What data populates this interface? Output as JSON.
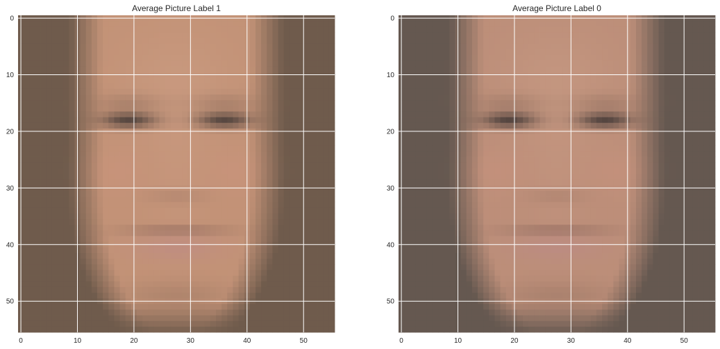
{
  "chart_data": [
    {
      "type": "heatmap",
      "title": "Average Picture Label 1",
      "x_ticks": [
        "0",
        "10",
        "20",
        "30",
        "40",
        "50"
      ],
      "y_ticks": [
        "0",
        "10",
        "20",
        "30",
        "40",
        "50"
      ],
      "xlim": [
        -0.5,
        55.5
      ],
      "ylim": [
        55.5,
        -0.5
      ],
      "grid": true,
      "image_size": [
        56,
        56
      ],
      "content": "average face image",
      "colors": {
        "background": "#6f5b4c",
        "skin": "#c79579",
        "lips": "#bf8c83",
        "eyes": "#4d403b"
      }
    },
    {
      "type": "heatmap",
      "title": "Average Picture Label 0",
      "x_ticks": [
        "0",
        "10",
        "20",
        "30",
        "40",
        "50"
      ],
      "y_ticks": [
        "0",
        "10",
        "20",
        "30",
        "40",
        "50"
      ],
      "xlim": [
        -0.5,
        55.5
      ],
      "ylim": [
        55.5,
        -0.5
      ],
      "grid": true,
      "image_size": [
        56,
        56
      ],
      "content": "average face image",
      "colors": {
        "background": "#655850",
        "skin": "#c1917b",
        "lips": "#bb8a84",
        "eyes": "#4a3e3a"
      }
    }
  ]
}
